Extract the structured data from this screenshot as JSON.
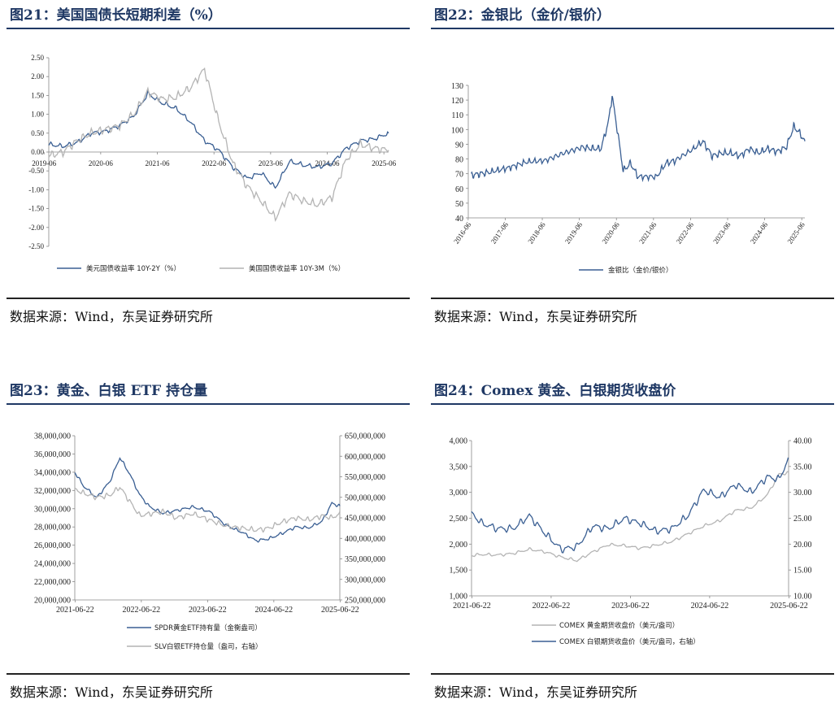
{
  "colors": {
    "title": "#1f3864",
    "series_blue": "#3a5f93",
    "series_gray": "#b4b4b4"
  },
  "panels": [
    {
      "title": "图21：美国国债长短期利差（%）",
      "source": "数据来源：Wind，东吴证券研究所",
      "chart_data": {
        "type": "line",
        "x_ticks": [
          "2019-06",
          "2020-06",
          "2021-06",
          "2022-06",
          "2023-06",
          "2024-06",
          "2025-06"
        ],
        "y_ticks": [
          "2.50",
          "2.00",
          "1.50",
          "1.00",
          "0.50",
          "0.00",
          "-0.50",
          "-1.00",
          "-1.50",
          "-2.00",
          "-2.50"
        ],
        "ylim": [
          -2.5,
          2.5
        ],
        "series": [
          {
            "name": "美元国债收益率 10Y-2Y（%）",
            "color": "#3a5f93",
            "x": [
              2019.5,
              2019.75,
              2020.0,
              2020.25,
              2020.5,
              2020.75,
              2021.0,
              2021.25,
              2021.5,
              2021.75,
              2022.0,
              2022.25,
              2022.5,
              2022.75,
              2023.0,
              2023.25,
              2023.5,
              2023.75,
              2024.0,
              2024.25,
              2024.5,
              2024.75,
              2025.0,
              2025.25,
              2025.5
            ],
            "values": [
              0.2,
              0.15,
              0.25,
              0.5,
              0.55,
              0.7,
              0.95,
              1.55,
              1.3,
              1.15,
              0.8,
              0.3,
              0.05,
              -0.4,
              -0.7,
              -0.55,
              -0.95,
              -0.25,
              -0.35,
              -0.4,
              -0.3,
              0.1,
              0.3,
              0.35,
              0.5
            ]
          },
          {
            "name": "美国国债收益率 10Y-3M（%）",
            "color": "#b4b4b4",
            "x": [
              2019.5,
              2019.75,
              2020.0,
              2020.25,
              2020.5,
              2020.75,
              2021.0,
              2021.25,
              2021.5,
              2021.75,
              2022.0,
              2022.25,
              2022.5,
              2022.75,
              2023.0,
              2023.25,
              2023.5,
              2023.75,
              2024.0,
              2024.25,
              2024.5,
              2024.75,
              2025.0,
              2025.25,
              2025.5
            ],
            "values": [
              -0.1,
              0.0,
              0.3,
              0.5,
              0.6,
              0.7,
              1.0,
              1.6,
              1.4,
              1.45,
              1.7,
              2.2,
              0.8,
              -0.3,
              -0.9,
              -1.3,
              -1.75,
              -1.1,
              -1.3,
              -1.4,
              -1.2,
              -0.2,
              0.2,
              0.1,
              0.05
            ]
          }
        ]
      }
    },
    {
      "title": "图22：金银比（金价/银价）",
      "source": "数据来源：Wind，东吴证券研究所",
      "chart_data": {
        "type": "line",
        "x_ticks": [
          "2016-06",
          "2017-06",
          "2018-06",
          "2019-06",
          "2020-06",
          "2021-06",
          "2022-06",
          "2023-06",
          "2024-06",
          "2025-06"
        ],
        "y_ticks": [
          "130",
          "120",
          "110",
          "100",
          "90",
          "80",
          "70",
          "60",
          "50",
          "40"
        ],
        "ylim": [
          40,
          130
        ],
        "series": [
          {
            "name": "金银比（金价/银价）",
            "color": "#3a5f93",
            "x": [
              2016.5,
              2016.75,
              2017.0,
              2017.5,
              2018.0,
              2018.5,
              2019.0,
              2019.5,
              2019.75,
              2020.0,
              2020.2,
              2020.3,
              2020.45,
              2020.6,
              2020.8,
              2021.0,
              2021.5,
              2021.75,
              2022.0,
              2022.5,
              2022.75,
              2023.0,
              2023.25,
              2023.5,
              2023.75,
              2024.0,
              2024.25,
              2024.5,
              2024.75,
              2025.0,
              2025.2,
              2025.35,
              2025.5
            ],
            "values": [
              69,
              70,
              71,
              74,
              78,
              79,
              84,
              88,
              87,
              87,
              105,
              123,
              98,
              72,
              77,
              68,
              68,
              77,
              79,
              87,
              92,
              82,
              84,
              84,
              82,
              87,
              84,
              87,
              85,
              88,
              102,
              98,
              92
            ]
          }
        ]
      }
    },
    {
      "title": "图23：黄金、白银 ETF 持仓量",
      "source": "数据来源：Wind，东吴证券研究所",
      "chart_data": {
        "type": "line",
        "x_ticks": [
          "2021-06-22",
          "2022-06-22",
          "2023-06-22",
          "2024-06-22",
          "2025-06-22"
        ],
        "y_ticks_left": [
          "38,000,000",
          "36,000,000",
          "34,000,000",
          "32,000,000",
          "30,000,000",
          "28,000,000",
          "26,000,000",
          "24,000,000",
          "22,000,000",
          "20,000,000"
        ],
        "y_ticks_right": [
          "650,000,000",
          "600,000,000",
          "550,000,000",
          "500,000,000",
          "450,000,000",
          "400,000,000",
          "350,000,000",
          "300,000,000",
          "250,000,000"
        ],
        "ylim_left": [
          20000000,
          38000000
        ],
        "ylim_right": [
          250000000,
          650000000
        ],
        "series": [
          {
            "name": "SPDR黄金ETF持有量（金衡盎司）",
            "axis": "left",
            "color": "#3a5f93",
            "x": [
              2021.47,
              2021.6,
              2021.8,
              2022.0,
              2022.15,
              2022.3,
              2022.45,
              2022.6,
              2022.8,
              2023.0,
              2023.25,
              2023.5,
              2023.75,
              2024.0,
              2024.2,
              2024.4,
              2024.6,
              2024.8,
              2025.0,
              2025.2,
              2025.35,
              2025.47
            ],
            "values": [
              34000000,
              32500000,
              31200000,
              33000000,
              35600000,
              33800000,
              31500000,
              30200000,
              29500000,
              29800000,
              30200000,
              29700000,
              28200000,
              27400000,
              26500000,
              26700000,
              27300000,
              28000000,
              27900000,
              28600000,
              30600000,
              30300000
            ]
          },
          {
            "name": "SLV白银ETF持仓量（盎司，右轴）",
            "axis": "right",
            "color": "#b4b4b4",
            "x": [
              2021.47,
              2021.6,
              2021.8,
              2022.0,
              2022.15,
              2022.3,
              2022.45,
              2022.6,
              2022.8,
              2023.0,
              2023.25,
              2023.5,
              2023.75,
              2024.0,
              2024.2,
              2024.4,
              2024.6,
              2024.8,
              2025.0,
              2025.2,
              2025.35,
              2025.47
            ],
            "values": [
              520000000,
              510000000,
              500000000,
              505000000,
              525000000,
              490000000,
              455000000,
              460000000,
              465000000,
              450000000,
              460000000,
              445000000,
              430000000,
              425000000,
              420000000,
              425000000,
              440000000,
              450000000,
              445000000,
              455000000,
              450000000,
              460000000
            ]
          }
        ]
      }
    },
    {
      "title": "图24：Comex 黄金、白银期货收盘价",
      "source": "数据来源：Wind，东吴证券研究所",
      "chart_data": {
        "type": "line",
        "x_ticks": [
          "2021-06-22",
          "2022-06-22",
          "2023-06-22",
          "2024-06-22",
          "2025-06-22"
        ],
        "y_ticks_left": [
          "4,000",
          "3,500",
          "3,000",
          "2,500",
          "2,000",
          "1,500",
          "1,000"
        ],
        "y_ticks_right": [
          "40.00",
          "35.00",
          "30.00",
          "25.00",
          "20.00",
          "15.00",
          "10.00"
        ],
        "ylim_left": [
          1000,
          4000
        ],
        "ylim_right": [
          10,
          40
        ],
        "series": [
          {
            "name": "COMEX 黄金期货收盘价（美元/盎司）",
            "axis": "left",
            "color": "#b4b4b4",
            "x": [
              2021.47,
              2021.6,
              2021.8,
              2022.0,
              2022.2,
              2022.4,
              2022.6,
              2022.8,
              2023.0,
              2023.2,
              2023.4,
              2023.6,
              2023.8,
              2024.0,
              2024.2,
              2024.4,
              2024.6,
              2024.8,
              2025.0,
              2025.2,
              2025.35,
              2025.47
            ],
            "values": [
              1780,
              1800,
              1790,
              1820,
              1900,
              1850,
              1750,
              1680,
              1850,
              1990,
              1970,
              1920,
              1980,
              2050,
              2200,
              2350,
              2450,
              2650,
              2700,
              2950,
              3350,
              3380
            ]
          },
          {
            "name": "COMEX 白银期货收盘价（美元/盎司，右轴）",
            "axis": "right",
            "color": "#3a5f93",
            "x": [
              2021.47,
              2021.6,
              2021.8,
              2022.0,
              2022.2,
              2022.4,
              2022.6,
              2022.8,
              2023.0,
              2023.2,
              2023.4,
              2023.6,
              2023.8,
              2024.0,
              2024.2,
              2024.4,
              2024.6,
              2024.8,
              2025.0,
              2025.2,
              2025.35,
              2025.47
            ],
            "values": [
              26,
              24,
              23,
              23,
              25.5,
              22,
              19,
              19.5,
              23.5,
              23,
              25,
              24,
              22.5,
              23,
              25.5,
              30.5,
              29,
              31.5,
              30,
              33,
              32.5,
              36.5
            ]
          }
        ]
      }
    }
  ]
}
